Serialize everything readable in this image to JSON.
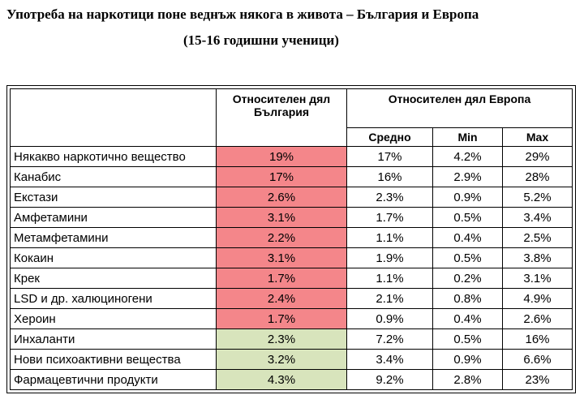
{
  "title": "Употреба на наркотици поне веднъж някога в живота – България и Европа",
  "subtitle": "(15-16 годишни ученици)",
  "table": {
    "header_bulgaria": "Относителен дял България",
    "header_europe": "Относителен дял Европа",
    "sub_headers": [
      "Средно",
      "Min",
      "Max"
    ],
    "rows": [
      {
        "label": "Някакво наркотично вещество",
        "bg": "19%",
        "avg": "17%",
        "min": "4.2%",
        "max": "29%",
        "highlight": "red"
      },
      {
        "label": "Канабис",
        "bg": "17%",
        "avg": "16%",
        "min": "2.9%",
        "max": "28%",
        "highlight": "red"
      },
      {
        "label": "Екстази",
        "bg": "2.6%",
        "avg": "2.3%",
        "min": "0.9%",
        "max": "5.2%",
        "highlight": "red"
      },
      {
        "label": "Амфетамини",
        "bg": "3.1%",
        "avg": "1.7%",
        "min": "0.5%",
        "max": "3.4%",
        "highlight": "red"
      },
      {
        "label": "Метамфетамини",
        "bg": "2.2%",
        "avg": "1.1%",
        "min": "0.4%",
        "max": "2.5%",
        "highlight": "red"
      },
      {
        "label": "Кокаин",
        "bg": "3.1%",
        "avg": "1.9%",
        "min": "0.5%",
        "max": "3.8%",
        "highlight": "red"
      },
      {
        "label": "Крек",
        "bg": "1.7%",
        "avg": "1.1%",
        "min": "0.2%",
        "max": "3.1%",
        "highlight": "red"
      },
      {
        "label": "LSD и др. халюциногени",
        "bg": "2.4%",
        "avg": "2.1%",
        "min": "0.8%",
        "max": "4.9%",
        "highlight": "red"
      },
      {
        "label": "Хероин",
        "bg": "1.7%",
        "avg": "0.9%",
        "min": "0.4%",
        "max": "2.6%",
        "highlight": "red"
      },
      {
        "label": "Инхаланти",
        "bg": "2.3%",
        "avg": "7.2%",
        "min": "0.5%",
        "max": "16%",
        "highlight": "green"
      },
      {
        "label": "Нови психоактивни вещества",
        "bg": "3.2%",
        "avg": "3.4%",
        "min": "0.9%",
        "max": "6.6%",
        "highlight": "green"
      },
      {
        "label": "Фармацевтични продукти",
        "bg": "4.3%",
        "avg": "9.2%",
        "min": "2.8%",
        "max": "23%",
        "highlight": "green"
      }
    ]
  },
  "colors": {
    "highlight_red": "#f4868a",
    "highlight_green": "#d8e4bc"
  }
}
